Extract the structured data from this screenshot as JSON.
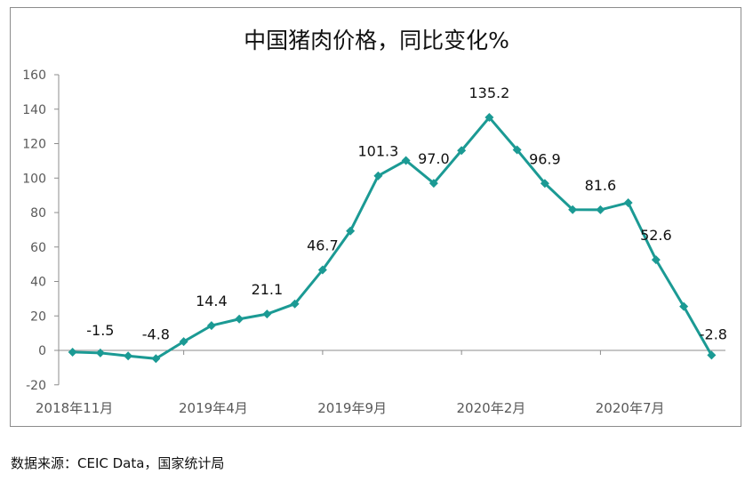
{
  "chart_data": {
    "type": "line",
    "title": "中国猪肉价格，同比变化%",
    "xlabel": "",
    "ylabel": "",
    "categories": [
      "2018-11",
      "2018-12",
      "2019-01",
      "2019-02",
      "2019-03",
      "2019-04",
      "2019-05",
      "2019-06",
      "2019-07",
      "2019-08",
      "2019-09",
      "2019-10",
      "2019-11",
      "2019-12",
      "2020-01",
      "2020-02",
      "2020-03",
      "2020-04",
      "2020-05",
      "2020-06",
      "2020-07",
      "2020-08",
      "2020-09",
      "2020-10"
    ],
    "x_tick_labels": [
      {
        "index": 0,
        "label": "2018年11月"
      },
      {
        "index": 5,
        "label": "2019年4月"
      },
      {
        "index": 10,
        "label": "2019年9月"
      },
      {
        "index": 15,
        "label": "2020年2月"
      },
      {
        "index": 20,
        "label": "2020年7月"
      }
    ],
    "values": [
      -1.0,
      -1.5,
      -3.2,
      -4.8,
      5.1,
      14.4,
      18.2,
      21.1,
      27.0,
      46.7,
      69.3,
      101.3,
      110.2,
      97.0,
      116.0,
      135.2,
      116.4,
      96.9,
      81.7,
      81.6,
      85.7,
      52.6,
      25.5,
      -2.8
    ],
    "data_labels": [
      {
        "index": 1,
        "label": "-1.5"
      },
      {
        "index": 3,
        "label": "-4.8"
      },
      {
        "index": 5,
        "label": "14.4"
      },
      {
        "index": 7,
        "label": "21.1"
      },
      {
        "index": 9,
        "label": "46.7"
      },
      {
        "index": 11,
        "label": "101.3"
      },
      {
        "index": 13,
        "label": "97.0"
      },
      {
        "index": 15,
        "label": "135.2"
      },
      {
        "index": 17,
        "label": "96.9"
      },
      {
        "index": 19,
        "label": "81.6"
      },
      {
        "index": 21,
        "label": "52.6"
      },
      {
        "index": 23,
        "label": "-2.8"
      }
    ],
    "ylim": [
      -20,
      160
    ],
    "y_ticks": [
      -20,
      0,
      20,
      40,
      60,
      80,
      100,
      120,
      140,
      160
    ],
    "grid": false,
    "legend": "none",
    "marker": "diamond",
    "color": "#1b9a94"
  },
  "source": "数据来源：CEIC Data，国家统计局"
}
